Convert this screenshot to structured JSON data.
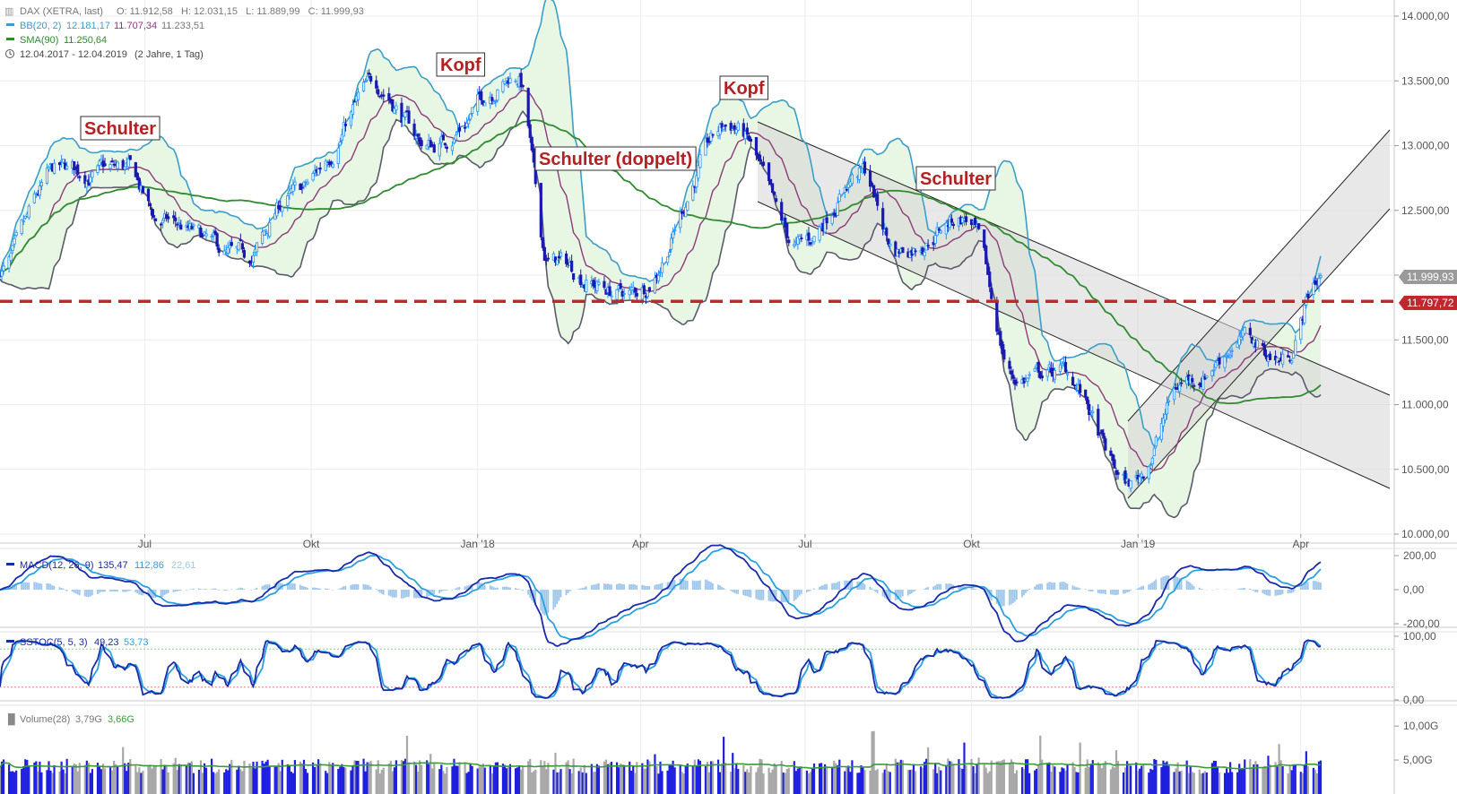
{
  "colors": {
    "candle_up": "#1e90ff",
    "candle_down": "#1a1ab0",
    "bb_band": "#3a9ec8",
    "bb_fill": "#e8f6e4",
    "bb_mid": "#8b3a7a",
    "sma": "#2e8b2e",
    "support": "#c0282d",
    "channel_fill": "#d6d6d6",
    "macd_line": "#1a2aa8",
    "macd_signal": "#2aa0e0",
    "macd_hist": "#9ec6ea",
    "sstoc_k": "#1a2aa8",
    "sstoc_d": "#2aa0e0",
    "volume_up": "#1f1fe0",
    "volume_down": "#a8a8a8",
    "volume_avg": "#3a9a3a"
  },
  "legend": {
    "instrument": "DAX (XETRA, last)",
    "ohlc": "O: 11.912,58   H: 12.031,15   L: 11.889,99   C: 11.999,93",
    "bb_label": "BB(20, 2)",
    "bb_upper": "12.181,17",
    "bb_mid": "11.707,34",
    "bb_lower": "11.233,51",
    "sma_label": "SMA(90)",
    "sma_value": "11.250,64",
    "range": "12.04.2017 - 12.04.2019",
    "range_detail": "(2 Jahre, 1 Tag)"
  },
  "macd_legend": {
    "label": "MACD(12, 26, 9)",
    "v1": "135,47",
    "v2": "112,86",
    "v3": "22,61"
  },
  "sstoc_legend": {
    "label": "SSTOC(5, 5, 3)",
    "v1": "49,23",
    "v2": "53,73"
  },
  "volume_legend": {
    "label": "Volume(28)",
    "v1": "3,79G",
    "v2": "3,66G"
  },
  "chart_data": {
    "type": "candlestick",
    "title": "DAX (XETRA, last)",
    "ylim": [
      10000,
      14000
    ],
    "y_ticks": [
      "14.000,00",
      "13.500,00",
      "13.000,00",
      "12.500,00",
      "12.000,00",
      "11.500,00",
      "11.000,00",
      "10.500,00",
      "10.000,00"
    ],
    "x_ticks": [
      "Jul",
      "Okt",
      "Jan '18",
      "Apr",
      "Jul",
      "Okt",
      "Jan '19",
      "Apr"
    ],
    "last_price": "11.999,93",
    "support_level": 11797.72,
    "support_label": "11.797,72",
    "annotations": [
      "Schulter",
      "Kopf",
      "Schulter (doppelt)",
      "Kopf",
      "Schulter"
    ],
    "series_close_approx": [
      {
        "date": "2017-04-12",
        "close": 12050
      },
      {
        "date": "2017-05-15",
        "close": 12780
      },
      {
        "date": "2017-06-20",
        "close": 12800
      },
      {
        "date": "2017-07-10",
        "close": 12400
      },
      {
        "date": "2017-08-25",
        "close": 12100
      },
      {
        "date": "2017-09-20",
        "close": 12600
      },
      {
        "date": "2017-11-07",
        "close": 13450
      },
      {
        "date": "2017-12-05",
        "close": 13000
      },
      {
        "date": "2018-01-23",
        "close": 13550
      },
      {
        "date": "2018-02-09",
        "close": 12100
      },
      {
        "date": "2018-03-26",
        "close": 11850
      },
      {
        "date": "2018-05-22",
        "close": 13150
      },
      {
        "date": "2018-06-27",
        "close": 12200
      },
      {
        "date": "2018-08-01",
        "close": 12800
      },
      {
        "date": "2018-08-20",
        "close": 12200
      },
      {
        "date": "2018-09-27",
        "close": 12450
      },
      {
        "date": "2018-10-26",
        "close": 11200
      },
      {
        "date": "2018-11-20",
        "close": 11250
      },
      {
        "date": "2018-12-27",
        "close": 10380
      },
      {
        "date": "2019-01-29",
        "close": 11200
      },
      {
        "date": "2019-02-28",
        "close": 11500
      },
      {
        "date": "2019-03-22",
        "close": 11350
      },
      {
        "date": "2019-04-12",
        "close": 12000
      }
    ],
    "macd": {
      "ylim": [
        -200,
        200
      ],
      "ticks": [
        "200,00",
        "0,00",
        "-200,00"
      ]
    },
    "sstoc": {
      "ylim": [
        0,
        100
      ],
      "ticks": [
        "100,00",
        "0,00"
      ]
    },
    "volume": {
      "ticks": [
        "10,00G",
        "5,00G"
      ],
      "unit": "G"
    }
  }
}
